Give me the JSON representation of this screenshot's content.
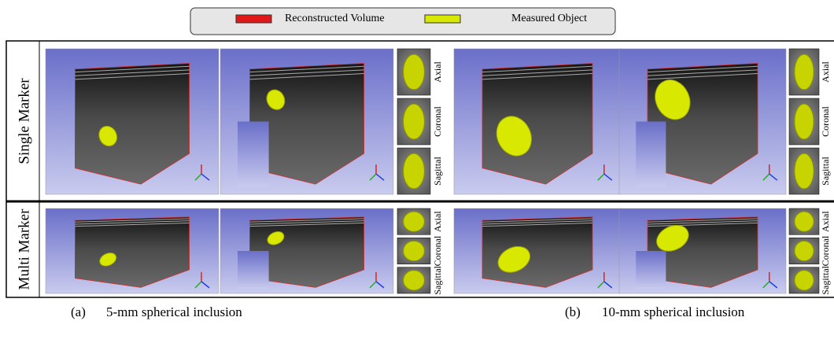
{
  "legend": {
    "items": [
      "Reconstructed Volume",
      "Measured Object"
    ]
  },
  "rows": [
    "Single Marker",
    "Multi Marker"
  ],
  "slice_labels": [
    "Axial",
    "Coronal",
    "Sagittal"
  ],
  "captions": [
    {
      "label": "(a)",
      "text": "5-mm spherical inclusion"
    },
    {
      "label": "(b)",
      "text": "10-mm spherical inclusion"
    }
  ]
}
